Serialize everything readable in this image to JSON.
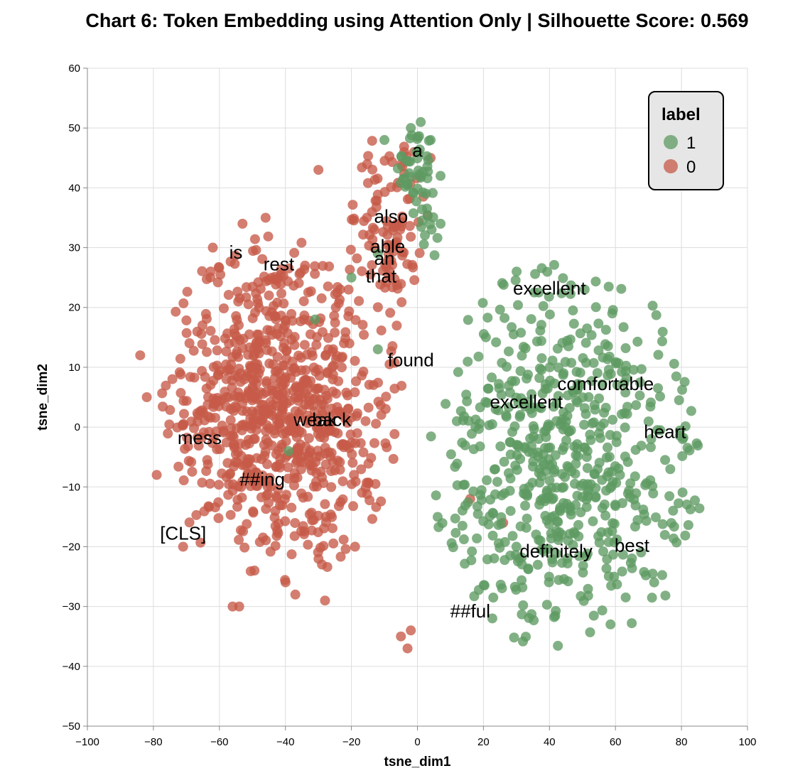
{
  "chart_data": {
    "type": "scatter",
    "title": "Chart 6: Token Embedding using Attention Only | Silhouette Score: 0.569",
    "xlabel": "tsne_dim1",
    "ylabel": "tsne_dim2",
    "xlim": [
      -100,
      100
    ],
    "ylim": [
      -50,
      60
    ],
    "xticks": [
      -100,
      -80,
      -60,
      -40,
      -20,
      0,
      20,
      40,
      60,
      80,
      100
    ],
    "yticks": [
      -50,
      -40,
      -30,
      -20,
      -10,
      0,
      10,
      20,
      30,
      40,
      50,
      60
    ],
    "xtick_labels": [
      "−100",
      "−80",
      "−60",
      "−40",
      "−20",
      "0",
      "20",
      "40",
      "60",
      "80",
      "100"
    ],
    "ytick_labels": [
      "−50",
      "−40",
      "−30",
      "−20",
      "−10",
      "0",
      "10",
      "20",
      "30",
      "40",
      "50",
      "60"
    ],
    "grid": true,
    "legend": {
      "title": "label",
      "placement": "top-right",
      "entries": [
        {
          "label": "1",
          "color": "#5e9a62"
        },
        {
          "label": "0",
          "color": "#c65a48"
        }
      ]
    },
    "series": [
      {
        "name": "1",
        "color": "#5e9a62",
        "clusters": [
          {
            "cx": 45,
            "cy": -5,
            "sx": 20,
            "sy": 16,
            "n": 620
          },
          {
            "cx": 0,
            "cy": 44,
            "sx": 3,
            "sy": 4,
            "n": 40
          },
          {
            "cx": 2,
            "cy": 34,
            "sx": 3,
            "sy": 4,
            "n": 14
          }
        ],
        "points": [
          [
            -10,
            48
          ],
          [
            -2,
            50
          ],
          [
            1,
            51
          ],
          [
            4,
            48
          ],
          [
            7,
            42
          ],
          [
            7,
            34
          ],
          [
            -20,
            25
          ],
          [
            -31,
            18
          ],
          [
            -39,
            -4
          ],
          [
            -12,
            13
          ],
          [
            -12,
            29
          ]
        ]
      },
      {
        "name": "0",
        "color": "#c65a48",
        "clusters": [
          {
            "cx": -42,
            "cy": 3,
            "sx": 18,
            "sy": 14,
            "n": 820
          },
          {
            "cx": -8,
            "cy": 33,
            "sx": 6,
            "sy": 8,
            "n": 100
          }
        ],
        "points": [
          [
            -30,
            43
          ],
          [
            -4,
            46
          ],
          [
            -1,
            46
          ],
          [
            4,
            45
          ],
          [
            16,
            -12
          ],
          [
            26,
            -16
          ],
          [
            -2,
            -34
          ],
          [
            -3,
            -37
          ],
          [
            -5,
            -35
          ],
          [
            -53,
            34
          ],
          [
            -46,
            35
          ],
          [
            -84,
            12
          ],
          [
            -82,
            5
          ],
          [
            -79,
            -8
          ],
          [
            -62,
            30
          ],
          [
            -56,
            -30
          ],
          [
            -54,
            -30
          ],
          [
            -28,
            -29
          ],
          [
            -37,
            -28
          ],
          [
            -71,
            -20
          ]
        ]
      }
    ],
    "annotations": [
      {
        "text": "a",
        "x": 0,
        "y": 46
      },
      {
        "text": "also",
        "x": -8,
        "y": 35
      },
      {
        "text": "is",
        "x": -55,
        "y": 29
      },
      {
        "text": "able",
        "x": -9,
        "y": 30
      },
      {
        "text": "rest",
        "x": -42,
        "y": 27
      },
      {
        "text": "an",
        "x": -10,
        "y": 28
      },
      {
        "text": "that",
        "x": -11,
        "y": 25
      },
      {
        "text": "excellent",
        "x": 40,
        "y": 23
      },
      {
        "text": "found",
        "x": -2,
        "y": 11
      },
      {
        "text": "comfortable",
        "x": 57,
        "y": 7
      },
      {
        "text": "excellent",
        "x": 33,
        "y": 4
      },
      {
        "text": "weak",
        "x": -31,
        "y": 1
      },
      {
        "text": "back",
        "x": -26,
        "y": 1
      },
      {
        "text": "heart",
        "x": 75,
        "y": -1
      },
      {
        "text": "mess",
        "x": -66,
        "y": -2
      },
      {
        "text": "##ing",
        "x": -47,
        "y": -9
      },
      {
        "text": "[CLS]",
        "x": -71,
        "y": -18
      },
      {
        "text": "definitely",
        "x": 42,
        "y": -21
      },
      {
        "text": "best",
        "x": 65,
        "y": -20
      },
      {
        "text": "##ful",
        "x": 16,
        "y": -31
      }
    ]
  }
}
